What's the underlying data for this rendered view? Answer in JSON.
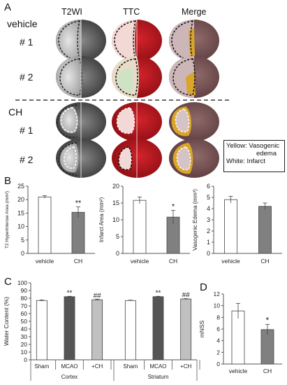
{
  "panel_a": {
    "letter": "A",
    "columns": [
      "T2WI",
      "TTC",
      "Merge"
    ],
    "groups": [
      {
        "label": "vehicle",
        "rows": [
          "# 1",
          "# 2"
        ]
      },
      {
        "label": "CH",
        "rows": [
          "# 1",
          "# 2"
        ]
      }
    ],
    "legend": {
      "line1": "Yellow: Vasogenic",
      "line2": "edema",
      "line3": "White: Infarct"
    },
    "colors": {
      "ttc": "#b3141c",
      "infarct": "#f2d9d6",
      "edema": "#d9a52a"
    }
  },
  "panel_b": {
    "letter": "B"
  },
  "panel_c": {
    "letter": "C"
  },
  "panel_d": {
    "letter": "D"
  },
  "chart_data": [
    {
      "type": "bar",
      "panel": "B",
      "categories": [
        "vehicle",
        "CH"
      ],
      "values": [
        21,
        15.3
      ],
      "errors": [
        0.5,
        2.0
      ],
      "colors": [
        "#ffffff",
        "#808080"
      ],
      "ylabel": "T2 Hyperintense Area (mm²)",
      "ylim": [
        0,
        25
      ],
      "yticks": [
        0,
        5,
        10,
        15,
        20,
        25
      ],
      "annotations": [
        "",
        "**"
      ]
    },
    {
      "type": "bar",
      "panel": "B",
      "categories": [
        "vehicle",
        "CH"
      ],
      "values": [
        15.8,
        10.8
      ],
      "errors": [
        1.0,
        2.0
      ],
      "colors": [
        "#ffffff",
        "#808080"
      ],
      "ylabel": "Infarct Area (mm²)",
      "ylim": [
        0,
        20
      ],
      "yticks": [
        0,
        5,
        10,
        15,
        20
      ],
      "annotations": [
        "",
        "*"
      ]
    },
    {
      "type": "bar",
      "panel": "B",
      "categories": [
        "vehicle",
        "CH"
      ],
      "values": [
        4.8,
        4.2
      ],
      "errors": [
        0.3,
        0.3
      ],
      "colors": [
        "#ffffff",
        "#808080"
      ],
      "ylabel": "Vasogenic Edema (mm²)",
      "ylim": [
        0,
        6
      ],
      "yticks": [
        0,
        1,
        2,
        3,
        4,
        5,
        6
      ],
      "annotations": [
        "",
        ""
      ]
    },
    {
      "type": "bar",
      "panel": "C",
      "categories": [
        "Sham",
        "MCAO",
        "+CH",
        "Sham",
        "MCAO",
        "+CH"
      ],
      "groups": [
        "Cortex",
        "Striatum"
      ],
      "values": [
        77,
        82,
        78,
        77,
        82,
        79
      ],
      "errors": [
        0.8,
        0.5,
        0.8,
        0.5,
        0.5,
        0.5
      ],
      "colors": [
        "#ffffff",
        "#555555",
        "#c0c0c0",
        "#ffffff",
        "#555555",
        "#c0c0c0"
      ],
      "ylabel": "Water Content (%)",
      "ylim": [
        0,
        100
      ],
      "yticks": [
        0,
        10,
        20,
        30,
        40,
        50,
        60,
        70,
        80,
        90,
        100
      ],
      "annotations": [
        "",
        "**",
        "##",
        "",
        "**",
        "##"
      ]
    },
    {
      "type": "bar",
      "panel": "D",
      "categories": [
        "vehicle",
        "CH"
      ],
      "values": [
        9.1,
        5.9
      ],
      "errors": [
        1.3,
        0.9
      ],
      "colors": [
        "#ffffff",
        "#808080"
      ],
      "ylabel": "mNSS",
      "ylim": [
        0,
        12
      ],
      "yticks": [
        0,
        2,
        4,
        6,
        8,
        10,
        12
      ],
      "annotations": [
        "",
        "*"
      ]
    }
  ]
}
